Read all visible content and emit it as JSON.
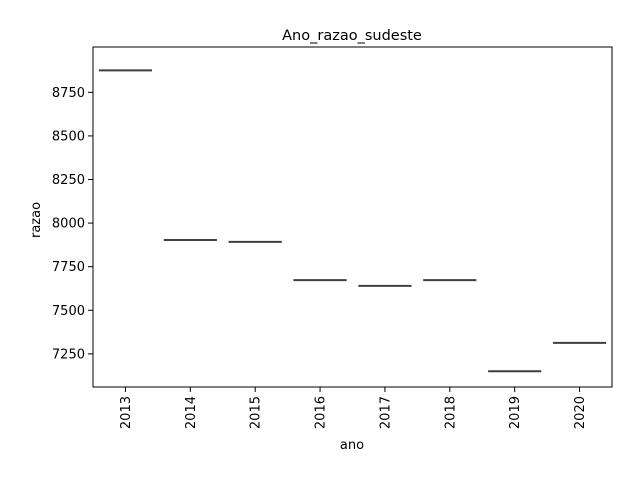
{
  "chart_data": {
    "type": "box",
    "title": "Ano_razao_sudeste",
    "xlabel": "ano",
    "ylabel": "razao",
    "categories": [
      "2013",
      "2014",
      "2015",
      "2016",
      "2017",
      "2018",
      "2019",
      "2020"
    ],
    "values": [
      8876,
      7903,
      7892,
      7673,
      7640,
      7673,
      7150,
      7313
    ],
    "ylim": [
      7060,
      9010
    ],
    "yticks": [
      7250,
      7500,
      7750,
      8000,
      8250,
      8500,
      8750
    ],
    "ytick_labels": [
      "7250",
      "7500",
      "7750",
      "8000",
      "8250",
      "8500",
      "8750"
    ],
    "grid": false,
    "line_color": "#3f3f3f"
  }
}
